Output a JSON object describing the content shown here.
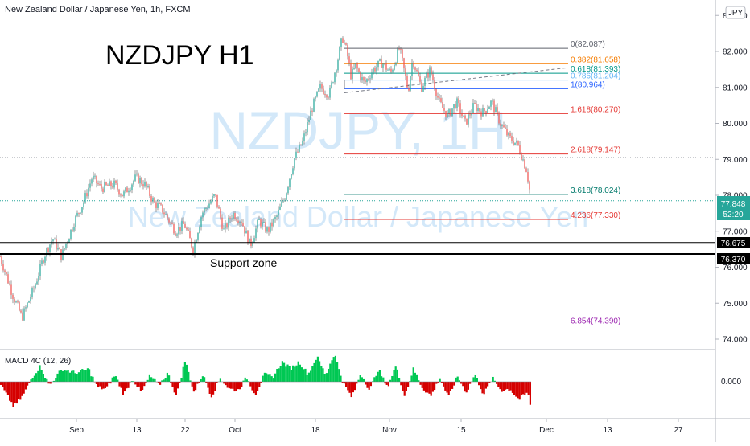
{
  "header": {
    "symbol_title": "New Zealand Dollar / Japanese Yen, 1h, FXCM",
    "currency_badge": "JPY"
  },
  "annotations": {
    "chart_title": "NZDJPY H1",
    "support_label": "Support zone",
    "watermark_symbol": "NZDJPY, 1H",
    "watermark_name": "New Zealand Dollar / Japanese Yen"
  },
  "price_tag": {
    "value": "77.848",
    "countdown": "52:20"
  },
  "support_tags": [
    "76.675",
    "76.370"
  ],
  "colors": {
    "up": "#26a69a",
    "down": "#ef5350",
    "wick": "#555555",
    "macd_up": "#00c853",
    "macd_down": "#d50000",
    "support": "#000000",
    "price_tag_bg": "#26a69a"
  },
  "chart_data": [
    {
      "type": "candlestick",
      "title": "NZDJPY H1",
      "x_tick_labels": [
        "Sep",
        "13",
        "22",
        "Oct",
        "18",
        "Nov",
        "15",
        "Dec",
        "13",
        "27"
      ],
      "y_tick_labels": [
        "74.000",
        "75.000",
        "76.000",
        "77.000",
        "78.000",
        "79.000",
        "80.000",
        "81.000",
        "82.000",
        "83.000"
      ],
      "ylim": [
        73.8,
        83.4
      ],
      "price_path": [
        [
          0,
          76.3
        ],
        [
          3,
          75.2
        ],
        [
          5,
          74.6
        ],
        [
          8,
          75.5
        ],
        [
          10,
          76.3
        ],
        [
          12,
          76.8
        ],
        [
          14,
          76.3
        ],
        [
          17,
          77.3
        ],
        [
          19,
          77.8
        ],
        [
          21,
          78.5
        ],
        [
          23,
          78.2
        ],
        [
          26,
          78.3
        ],
        [
          28,
          78.0
        ],
        [
          31,
          78.5
        ],
        [
          33,
          78.3
        ],
        [
          35,
          77.8
        ],
        [
          37,
          77.6
        ],
        [
          40,
          77.0
        ],
        [
          42,
          77.2
        ],
        [
          44,
          76.5
        ],
        [
          46,
          77.5
        ],
        [
          49,
          78.0
        ],
        [
          51,
          77.0
        ],
        [
          53,
          77.5
        ],
        [
          55,
          77.3
        ],
        [
          57,
          76.6
        ],
        [
          59,
          77.3
        ],
        [
          61,
          77.0
        ],
        [
          63,
          77.4
        ],
        [
          65,
          78.0
        ],
        [
          67,
          79.0
        ],
        [
          69,
          79.5
        ],
        [
          71,
          80.4
        ],
        [
          73,
          81.0
        ],
        [
          75,
          80.8
        ],
        [
          77,
          81.8
        ],
        [
          78,
          82.4
        ],
        [
          79,
          82.0
        ],
        [
          80,
          81.3
        ],
        [
          81,
          81.6
        ],
        [
          83,
          81.1
        ],
        [
          85,
          81.5
        ],
        [
          87,
          81.7
        ],
        [
          89,
          81.4
        ],
        [
          91,
          82.1
        ],
        [
          92,
          81.5
        ],
        [
          93,
          80.9
        ],
        [
          94,
          81.8
        ],
        [
          96,
          81.0
        ],
        [
          98,
          81.5
        ],
        [
          100,
          80.6
        ],
        [
          102,
          80.2
        ],
        [
          104,
          80.6
        ],
        [
          106,
          80.0
        ],
        [
          108,
          80.5
        ],
        [
          110,
          80.3
        ],
        [
          112,
          80.6
        ],
        [
          114,
          80.0
        ],
        [
          116,
          79.6
        ],
        [
          118,
          79.4
        ],
        [
          120,
          78.7
        ],
        [
          121,
          77.85
        ]
      ],
      "macd": {
        "label": "MACD 4C (12, 26)",
        "zero_label": "0.000",
        "ylim": [
          -0.45,
          0.45
        ],
        "pattern": [
          [
            0,
            -0.05
          ],
          [
            3,
            -0.35
          ],
          [
            5,
            -0.2
          ],
          [
            7,
            0.05
          ],
          [
            9,
            0.22
          ],
          [
            11,
            -0.05
          ],
          [
            14,
            0.18
          ],
          [
            17,
            0.12
          ],
          [
            20,
            0.18
          ],
          [
            22,
            -0.08
          ],
          [
            24,
            -0.1
          ],
          [
            26,
            0.1
          ],
          [
            28,
            -0.18
          ],
          [
            30,
            0.05
          ],
          [
            32,
            -0.15
          ],
          [
            34,
            0.08
          ],
          [
            36,
            -0.05
          ],
          [
            38,
            0.12
          ],
          [
            40,
            -0.2
          ],
          [
            42,
            0.3
          ],
          [
            44,
            -0.15
          ],
          [
            46,
            0.1
          ],
          [
            48,
            -0.2
          ],
          [
            50,
            0.05
          ],
          [
            52,
            -0.1
          ],
          [
            54,
            -0.12
          ],
          [
            56,
            0.06
          ],
          [
            58,
            -0.18
          ],
          [
            60,
            0.1
          ],
          [
            62,
            0.06
          ],
          [
            64,
            0.28
          ],
          [
            66,
            0.18
          ],
          [
            68,
            0.28
          ],
          [
            70,
            0.1
          ],
          [
            72,
            0.35
          ],
          [
            74,
            0.1
          ],
          [
            76,
            0.4
          ],
          [
            78,
            -0.02
          ],
          [
            80,
            -0.22
          ],
          [
            82,
            0.12
          ],
          [
            84,
            -0.12
          ],
          [
            86,
            0.18
          ],
          [
            88,
            -0.08
          ],
          [
            90,
            0.22
          ],
          [
            92,
            -0.2
          ],
          [
            94,
            0.18
          ],
          [
            96,
            -0.08
          ],
          [
            98,
            -0.2
          ],
          [
            100,
            0.05
          ],
          [
            102,
            -0.22
          ],
          [
            104,
            0.08
          ],
          [
            106,
            -0.15
          ],
          [
            108,
            0.1
          ],
          [
            110,
            -0.18
          ],
          [
            112,
            0.05
          ],
          [
            114,
            -0.12
          ],
          [
            116,
            -0.1
          ],
          [
            118,
            -0.25
          ],
          [
            120,
            -0.15
          ],
          [
            121,
            -0.42
          ]
        ]
      },
      "fibonacci": [
        {
          "label": "0(82.087)",
          "price": 82.087,
          "color": "#5d606b"
        },
        {
          "label": "0.382(81.658)",
          "price": 81.658,
          "color": "#f57c00"
        },
        {
          "label": "0.618(81.393)",
          "price": 81.393,
          "color": "#009688"
        },
        {
          "label": "0.786(81.204)",
          "price": 81.204,
          "color": "#64b5f6"
        },
        {
          "label": "1(80.964)",
          "price": 80.964,
          "color": "#2962ff"
        },
        {
          "label": "1.618(80.270)",
          "price": 80.27,
          "color": "#e53935"
        },
        {
          "label": "2.618(79.147)",
          "price": 79.147,
          "color": "#e53935"
        },
        {
          "label": "3.618(78.024)",
          "price": 78.024,
          "color": "#00796b"
        },
        {
          "label": "4.236(77.330)",
          "price": 77.33,
          "color": "#e53935"
        },
        {
          "label": "6.854(74.390)",
          "price": 74.39,
          "color": "#9c27b0"
        }
      ],
      "support_levels": [
        76.675,
        76.37
      ]
    }
  ]
}
